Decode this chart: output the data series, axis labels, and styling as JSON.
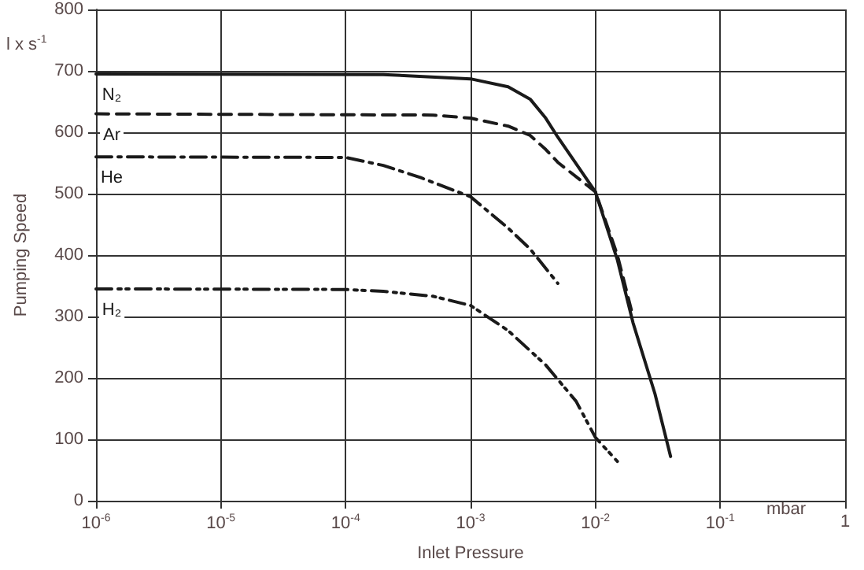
{
  "chart_data": {
    "type": "line",
    "xlabel": "Inlet Pressure",
    "ylabel": "Pumping Speed",
    "annotations": [
      "l x s$^{-1}$",
      "mbar"
    ],
    "log": "x",
    "grid": true,
    "legend": false,
    "marker": "none",
    "xlim": [
      1e-06,
      1
    ],
    "xticks": [
      {
        "value": 1e-06,
        "label": "10$^{-6}$"
      },
      {
        "value": 1e-05,
        "label": "10$^{-5}$"
      },
      {
        "value": 0.0001,
        "label": "10$^{-4}$"
      },
      {
        "value": 0.001,
        "label": "10$^{-3}$"
      },
      {
        "value": 0.01,
        "label": "10$^{-2}$"
      },
      {
        "value": 0.1,
        "label": "10$^{-1}$"
      },
      1
    ],
    "ylim": [
      0,
      800
    ],
    "yticks": [
      0,
      100,
      200,
      300,
      400,
      500,
      600,
      700,
      800
    ],
    "series": [
      {
        "name": "N₂",
        "color": "#1a1a1a",
        "line_style": "solid",
        "x": [
          1e-06,
          0.0002,
          0.001,
          0.002,
          0.003,
          0.004,
          0.005,
          0.01,
          0.015,
          0.02,
          0.03,
          0.04
        ],
        "values": [
          695,
          694,
          687,
          674,
          654,
          623,
          592,
          503,
          392,
          290,
          174,
          72
        ]
      },
      {
        "name": "Ar",
        "color": "#1a1a1a",
        "line_style": "dashed",
        "x": [
          1e-06,
          0.0005,
          0.001,
          0.002,
          0.003,
          0.004,
          0.005,
          0.01,
          0.015,
          0.02
        ],
        "values": [
          630,
          628,
          623,
          610,
          595,
          572,
          551,
          503,
          400,
          300
        ]
      },
      {
        "name": "He",
        "color": "#1a1a1a",
        "line_style": "dashdot",
        "x": [
          1e-06,
          0.0001,
          0.0002,
          0.0004,
          0.001,
          0.002,
          0.003,
          0.005
        ],
        "values": [
          560,
          559,
          546,
          526,
          495,
          444,
          410,
          354
        ]
      },
      {
        "name": "H₂",
        "color": "#1a1a1a",
        "line_style": "dashdotdot",
        "x": [
          1e-06,
          0.0001,
          0.0002,
          0.0005,
          0.001,
          0.002,
          0.004,
          0.007,
          0.01,
          0.015
        ],
        "values": [
          345,
          344,
          341,
          333,
          318,
          277,
          221,
          162,
          103,
          64
        ]
      }
    ]
  }
}
